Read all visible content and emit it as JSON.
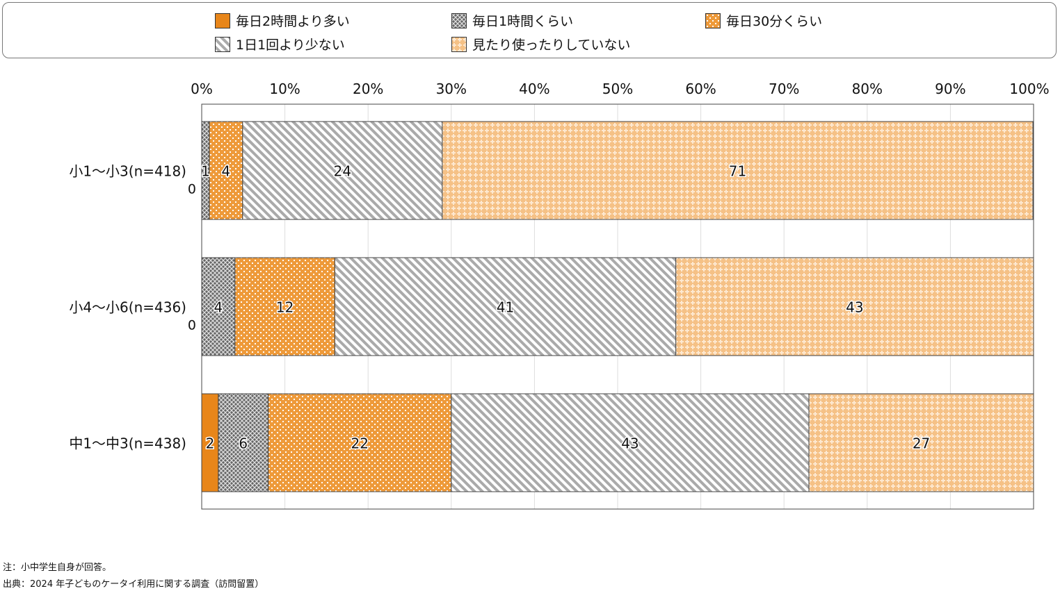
{
  "chart_data": {
    "type": "bar",
    "orientation": "horizontal-stacked-100",
    "categories": [
      "小1～小3(n=418)",
      "小4～小6(n=436)",
      "中1～中3(n=438)"
    ],
    "series": [
      {
        "name": "毎日2時間より多い",
        "values": [
          0,
          0,
          2
        ],
        "color": "#e8861a",
        "pattern": "solid"
      },
      {
        "name": "毎日1時間くらい",
        "values": [
          1,
          4,
          6
        ],
        "color": "#555555",
        "pattern": "crosshatch"
      },
      {
        "name": "毎日30分くらい",
        "values": [
          4,
          12,
          22
        ],
        "color": "#ee9a3a",
        "pattern": "dots"
      },
      {
        "name": "1日1回より少ない",
        "values": [
          24,
          41,
          43
        ],
        "color": "#aaaaaa",
        "pattern": "diagonal"
      },
      {
        "name": "見たり使ったりしていない",
        "values": [
          71,
          43,
          27
        ],
        "color": "#f5c186",
        "pattern": "light-dots"
      }
    ],
    "xticks": [
      "0%",
      "10%",
      "20%",
      "30%",
      "40%",
      "50%",
      "60%",
      "70%",
      "80%",
      "90%",
      "100%"
    ],
    "xlim": [
      0,
      100
    ],
    "grid": true,
    "legend": "top"
  },
  "notes": {
    "note": "注：小中学生自身が回答。",
    "source": "出典：2024 年子どものケータイ利用に関する調査（訪問留置）"
  }
}
